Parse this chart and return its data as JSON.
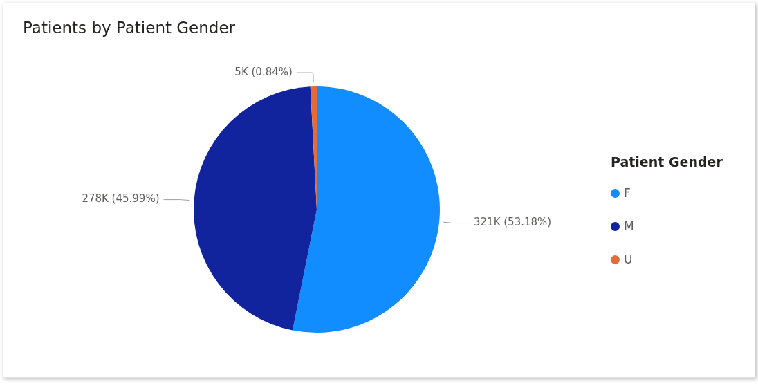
{
  "chart_data": {
    "type": "pie",
    "title": "Patients by Patient Gender",
    "legend_title": "Patient Gender",
    "legend": "right",
    "categories": [
      "F",
      "M",
      "U"
    ],
    "values": [
      321000,
      278000,
      5000
    ],
    "value_labels": [
      "321K (53.18%)",
      "278K (45.99%)",
      "5K (0.84%)"
    ],
    "colors": [
      "#118dff",
      "#12239e",
      "#e66c37"
    ]
  }
}
